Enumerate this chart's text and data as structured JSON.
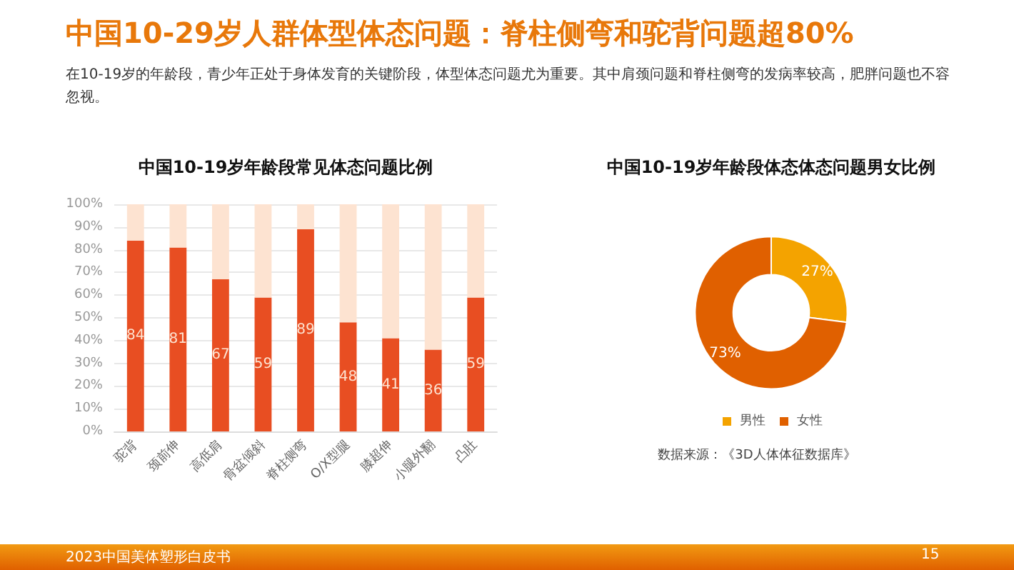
{
  "chart_data": [
    {
      "type": "other",
      "title": "中国10-29岁人群体型体态问题：脊柱侧弯和驼背问题超80%",
      "subtitle": "在10-19岁的年龄段，青少年正处于身体发育的关键阶段，体型体态问题尤为重要。其中肩颈问题和脊柱侧弯的发病率较高，肥胖问题也不容忽视。",
      "annotations": [
        "2023中国美体塑形白皮书",
        "15"
      ]
    },
    {
      "type": "bar",
      "title": "中国10-19岁年龄段常见体态问题比例",
      "categories": [
        "驼背",
        "颈前伸",
        "高低肩",
        "骨盆倾斜",
        "脊柱侧弯",
        "O/X型腿",
        "膝超伸",
        "小腿外翻",
        "凸肚"
      ],
      "stacked": true,
      "series": [
        {
          "color": "#e84e22",
          "values": [
            84,
            81,
            67,
            59,
            89,
            48,
            41,
            36,
            59
          ],
          "value_labels": [
            "84",
            "81",
            "67",
            "59",
            "89",
            "48",
            "41",
            "36",
            "59"
          ]
        },
        {
          "color": "#fde3d1",
          "values": [
            16,
            19,
            33,
            41,
            11,
            52,
            59,
            64,
            41
          ]
        }
      ],
      "ylim": [
        0,
        100
      ],
      "yticks": [
        {
          "value": 0,
          "label": "0%"
        },
        {
          "value": 10,
          "label": "10%"
        },
        {
          "value": 20,
          "label": "20%"
        },
        {
          "value": 30,
          "label": "30%"
        },
        {
          "value": 40,
          "label": "40%"
        },
        {
          "value": 50,
          "label": "50%"
        },
        {
          "value": 60,
          "label": "60%"
        },
        {
          "value": 70,
          "label": "70%"
        },
        {
          "value": 80,
          "label": "80%"
        },
        {
          "value": 90,
          "label": "90%"
        },
        {
          "value": 100,
          "label": "100%"
        }
      ],
      "grid": "y",
      "legend": false
    },
    {
      "type": "donut",
      "title": "中国10-19岁年龄段体态体态问题男女比例",
      "categories": [
        "男性",
        "女性"
      ],
      "values": [
        27,
        73
      ],
      "colors": [
        "#f4a300",
        "#e06000"
      ],
      "value_labels": [
        "27%",
        "73%"
      ],
      "legend": "bottom",
      "annotations": [
        "数据来源：《3D人体体征数据库》"
      ]
    }
  ]
}
